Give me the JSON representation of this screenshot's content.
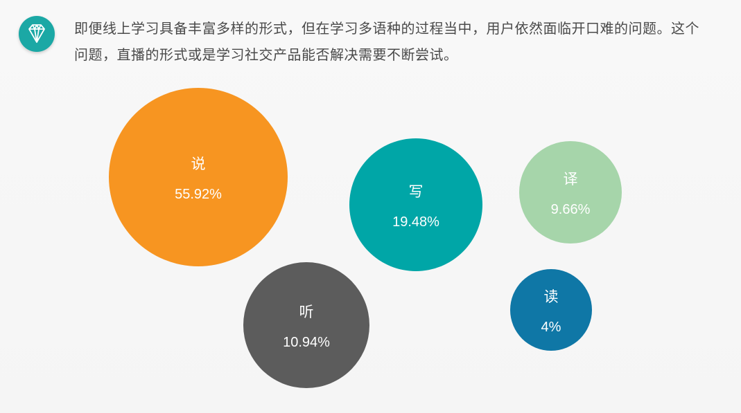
{
  "header": {
    "icon": "diamond-icon",
    "icon_color": "#1ba8a5",
    "text": "即便线上学习具备丰富多样的形式，但在学习多语种的过程当中，用户依然面临开口难的问题。这个问题，直播的形式或是学习社交产品能否解决需要不断尝试。"
  },
  "chart_data": {
    "type": "bubble",
    "title": "",
    "legend": false,
    "grid": false,
    "categories": [
      "说",
      "写",
      "译",
      "听",
      "读"
    ],
    "values": [
      55.92,
      19.48,
      9.66,
      10.94,
      4
    ],
    "value_labels": [
      "55.92%",
      "19.48%",
      "9.66%",
      "10.94%",
      "4%"
    ],
    "colors": [
      "#f79521",
      "#00a6a7",
      "#a6d5aa",
      "#5c5c5c",
      "#0f77a6"
    ]
  }
}
